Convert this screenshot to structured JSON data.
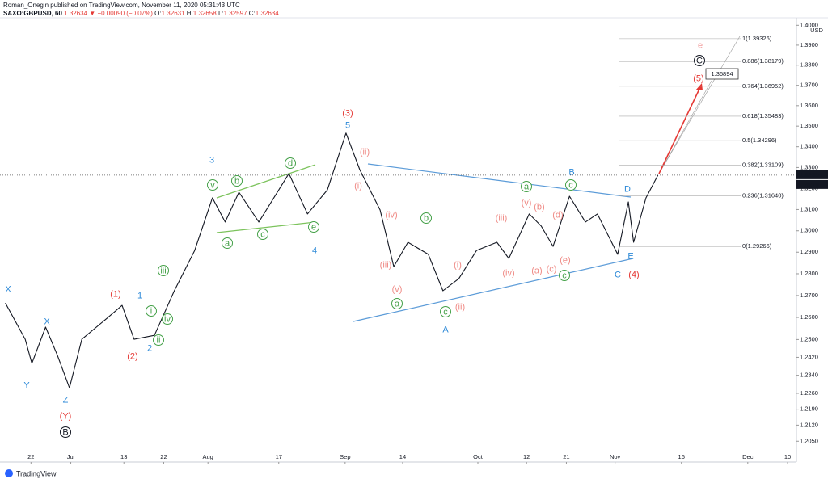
{
  "header": {
    "byline": "Roman_Onegin published on TradingView.com, November 11, 2020 05:31:43 UTC",
    "symbol": "SAXO:GBPUSD, 60",
    "change": "▼ −0.00090 (−0.07%)",
    "ohlc": [
      {
        "label": "O:",
        "value": "1.32631"
      },
      {
        "label": "H:",
        "value": "1.32658"
      },
      {
        "label": "L:",
        "value": "1.32597"
      },
      {
        "label": "C:",
        "value": "1.32634"
      }
    ]
  },
  "footer": {
    "brand": "TradingView"
  },
  "chart_data": {
    "type": "line",
    "color": "#131722",
    "log_scale": true,
    "grid": false,
    "x": [
      168.2,
      172.7,
      174.2,
      177.3,
      180,
      182.7,
      185.5,
      191,
      194.6,
      197.3,
      201.9,
      206.4,
      211,
      215,
      217.9,
      221,
      225.5,
      232.3,
      236.5,
      241,
      245.2,
      248.3,
      252.9,
      256,
      259.2,
      263.8,
      267.1,
      270.7,
      274.7,
      279.3,
      282,
      286.6,
      289.3,
      292,
      295.7,
      299.3,
      302,
      306.6,
      309,
      310.2,
      313,
      315.7
    ],
    "values": [
      1.2666,
      1.2501,
      1.2393,
      1.2556,
      1.2428,
      1.2284,
      1.2501,
      1.2593,
      1.2655,
      1.2501,
      1.2519,
      1.2722,
      1.2908,
      1.3155,
      1.3041,
      1.3182,
      1.3041,
      1.3271,
      1.3079,
      1.3193,
      1.3466,
      1.329,
      1.3098,
      1.2833,
      1.2946,
      1.289,
      1.2722,
      1.2778,
      1.2908,
      1.2946,
      1.2871,
      1.3079,
      1.3022,
      1.2927,
      1.3163,
      1.3041,
      1.3079,
      1.289,
      1.3136,
      1.2946,
      1.3155,
      1.32634
    ],
    "xlim": [
      167,
      347
    ],
    "xticks": [
      {
        "value": 174,
        "label": "22"
      },
      {
        "value": 183,
        "label": "Jul"
      },
      {
        "value": 195,
        "label": "13"
      },
      {
        "value": 204,
        "label": "22"
      },
      {
        "value": 214,
        "label": "Aug"
      },
      {
        "value": 230,
        "label": "17"
      },
      {
        "value": 245,
        "label": "Sep"
      },
      {
        "value": 258,
        "label": "14"
      },
      {
        "value": 275,
        "label": "Oct"
      },
      {
        "value": 286,
        "label": "12"
      },
      {
        "value": 295,
        "label": "21"
      },
      {
        "value": 306,
        "label": "Nov"
      },
      {
        "value": 321,
        "label": "16"
      },
      {
        "value": 336,
        "label": "Dec"
      },
      {
        "value": 345,
        "label": "10"
      }
    ],
    "ylim": [
      1.1967,
      1.4038
    ],
    "yticks": [
      {
        "value": 1.4,
        "label": "1.4000"
      },
      {
        "value": 1.39,
        "label": "1.3900"
      },
      {
        "value": 1.38,
        "label": "1.3800"
      },
      {
        "value": 1.37,
        "label": "1.3700"
      },
      {
        "value": 1.36,
        "label": "1.3600"
      },
      {
        "value": 1.35,
        "label": "1.3500"
      },
      {
        "value": 1.34,
        "label": "1.3400"
      },
      {
        "value": 1.33,
        "label": "1.3300"
      },
      {
        "value": 1.32,
        "label": "1.3200"
      },
      {
        "value": 1.31,
        "label": "1.3100"
      },
      {
        "value": 1.3,
        "label": "1.3000"
      },
      {
        "value": 1.29,
        "label": "1.2900"
      },
      {
        "value": 1.28,
        "label": "1.2800"
      },
      {
        "value": 1.27,
        "label": "1.2700"
      },
      {
        "value": 1.26,
        "label": "1.2600"
      },
      {
        "value": 1.25,
        "label": "1.2500"
      },
      {
        "value": 1.242,
        "label": "1.2420"
      },
      {
        "value": 1.234,
        "label": "1.2340"
      },
      {
        "value": 1.226,
        "label": "1.2260"
      },
      {
        "value": 1.219,
        "label": "1.2190"
      },
      {
        "value": 1.212,
        "label": "1.2120"
      },
      {
        "value": 1.205,
        "label": "1.2050"
      }
    ],
    "y_unit": "USD",
    "last_price": 1.32634,
    "countdown": "28:19",
    "target_label": "1.36894",
    "fib_levels": [
      {
        "value": 1.39326,
        "label": "1(1.39326)"
      },
      {
        "value": 1.38179,
        "label": "0.886(1.38179)"
      },
      {
        "value": 1.36952,
        "label": "0.764(1.36952)"
      },
      {
        "value": 1.35483,
        "label": "0.618(1.35483)"
      },
      {
        "value": 1.34296,
        "label": "0.5(1.34296)"
      },
      {
        "value": 1.33109,
        "label": "0.382(1.33109)"
      },
      {
        "value": 1.3164,
        "label": "0.236(1.31640)"
      },
      {
        "value": 1.29266,
        "label": "0(1.29266)"
      }
    ],
    "annotations": [
      {
        "text": "X",
        "color": "#2e8ad8"
      },
      {
        "text": "Y",
        "color": "#2e8ad8"
      },
      {
        "text": "X",
        "color": "#2e8ad8"
      },
      {
        "text": "Z",
        "color": "#2e8ad8"
      },
      {
        "text": "1",
        "color": "#2e8ad8"
      },
      {
        "text": "2",
        "color": "#2e8ad8"
      },
      {
        "text": "3",
        "color": "#2e8ad8"
      },
      {
        "text": "4",
        "color": "#2e8ad8"
      },
      {
        "text": "5",
        "color": "#2e8ad8"
      },
      {
        "text": "A",
        "color": "#2e8ad8"
      },
      {
        "text": "B",
        "color": "#2e8ad8"
      },
      {
        "text": "C",
        "color": "#2e8ad8"
      },
      {
        "text": "D",
        "color": "#2e8ad8"
      },
      {
        "text": "E",
        "color": "#2e8ad8"
      },
      {
        "text": "(Y)",
        "color": "#e53935"
      },
      {
        "text": "(1)",
        "color": "#e53935"
      },
      {
        "text": "(2)",
        "color": "#e53935"
      },
      {
        "text": "(3)",
        "color": "#e53935"
      },
      {
        "text": "(4)",
        "color": "#e53935"
      },
      {
        "text": "(5)",
        "color": "#e53935"
      },
      {
        "text": "e",
        "color": "#f09a9a"
      },
      {
        "text": "B",
        "color": "#131722",
        "circled": true
      },
      {
        "text": "C",
        "color": "#131722",
        "circled": true
      },
      {
        "text": "(ii)",
        "color": "#ef8a85"
      },
      {
        "text": "(i)",
        "color": "#ef8a85"
      },
      {
        "text": "(iv)",
        "color": "#ef8a85"
      },
      {
        "text": "(iii)",
        "color": "#ef8a85"
      },
      {
        "text": "(v)",
        "color": "#ef8a85"
      },
      {
        "text": "(i)",
        "color": "#ef8a85"
      },
      {
        "text": "(ii)",
        "color": "#ef8a85"
      },
      {
        "text": "(iii)",
        "color": "#ef8a85"
      },
      {
        "text": "(iv)",
        "color": "#ef8a85"
      },
      {
        "text": "(v)",
        "color": "#ef8a85"
      },
      {
        "text": "(b)",
        "color": "#ef8a85"
      },
      {
        "text": "(d)",
        "color": "#ef8a85"
      },
      {
        "text": "(a)",
        "color": "#ef8a85"
      },
      {
        "text": "(c)",
        "color": "#ef8a85"
      },
      {
        "text": "(e)",
        "color": "#ef8a85"
      },
      {
        "text": "v",
        "color": "#43a047",
        "circled": true
      },
      {
        "text": "b",
        "color": "#43a047",
        "circled": true
      },
      {
        "text": "d",
        "color": "#43a047",
        "circled": true
      },
      {
        "text": "a",
        "color": "#43a047",
        "circled": true
      },
      {
        "text": "c",
        "color": "#43a047",
        "circled": true
      },
      {
        "text": "e",
        "color": "#43a047",
        "circled": true
      },
      {
        "text": "iii",
        "color": "#43a047",
        "circled": true
      },
      {
        "text": "iv",
        "color": "#43a047",
        "circled": true
      },
      {
        "text": "i",
        "color": "#43a047",
        "circled": true
      },
      {
        "text": "ii",
        "color": "#43a047",
        "circled": true
      },
      {
        "text": "b",
        "color": "#43a047",
        "circled": true
      },
      {
        "text": "a",
        "color": "#43a047",
        "circled": true
      },
      {
        "text": "c",
        "color": "#43a047",
        "circled": true
      },
      {
        "text": "a",
        "color": "#43a047",
        "circled": true
      },
      {
        "text": "c",
        "color": "#43a047",
        "circled": true
      },
      {
        "text": "c",
        "color": "#43a047",
        "circled": true
      }
    ]
  }
}
